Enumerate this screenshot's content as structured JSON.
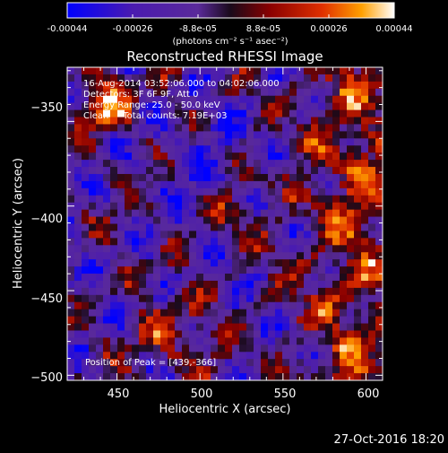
{
  "colorbar": {
    "ticks": [
      "-0.00044",
      "-0.00026",
      "-8.8e-05",
      "8.8e-05",
      "0.00026",
      "0.00044"
    ],
    "units": "(photons cm⁻² s⁻¹ asec⁻²)",
    "colors": [
      "#0000ff",
      "#4a1bb0",
      "#5a2a9a",
      "#1a0a1a",
      "#8a0000",
      "#e03000",
      "#ffa000",
      "#ffffff"
    ]
  },
  "footer_timestamp": "27-Oct-2016 18:20",
  "chart_data": {
    "type": "heatmap",
    "title": "Reconstructed RHESSI Image",
    "xlabel": "Heliocentric X (arcsec)",
    "ylabel": "Heliocentric Y (arcsec)",
    "xlim": [
      420,
      610
    ],
    "ylim": [
      -503,
      -318
    ],
    "x_ticks": [
      450,
      500,
      550,
      600
    ],
    "y_ticks": [
      -350,
      -400,
      -450,
      -500
    ],
    "x_tick_labels": [
      "450",
      "500",
      "550",
      "600"
    ],
    "y_tick_labels": [
      "−350",
      "−400",
      "−450",
      "−500"
    ],
    "annotations": [
      "16-Aug-2014 03:52:06.000 to 04:02:06.000",
      "Detectors: 3F 6F 9F, Att 0",
      "Energy Range: 25.0 - 50.0 keV",
      "Clean     Total counts: 7.19E+03"
    ],
    "peak_label": "Position of Peak = [439,-366]",
    "peak_position": [
      439,
      -366
    ],
    "color_range": [
      -0.00044,
      0.00044
    ],
    "grid": false
  }
}
